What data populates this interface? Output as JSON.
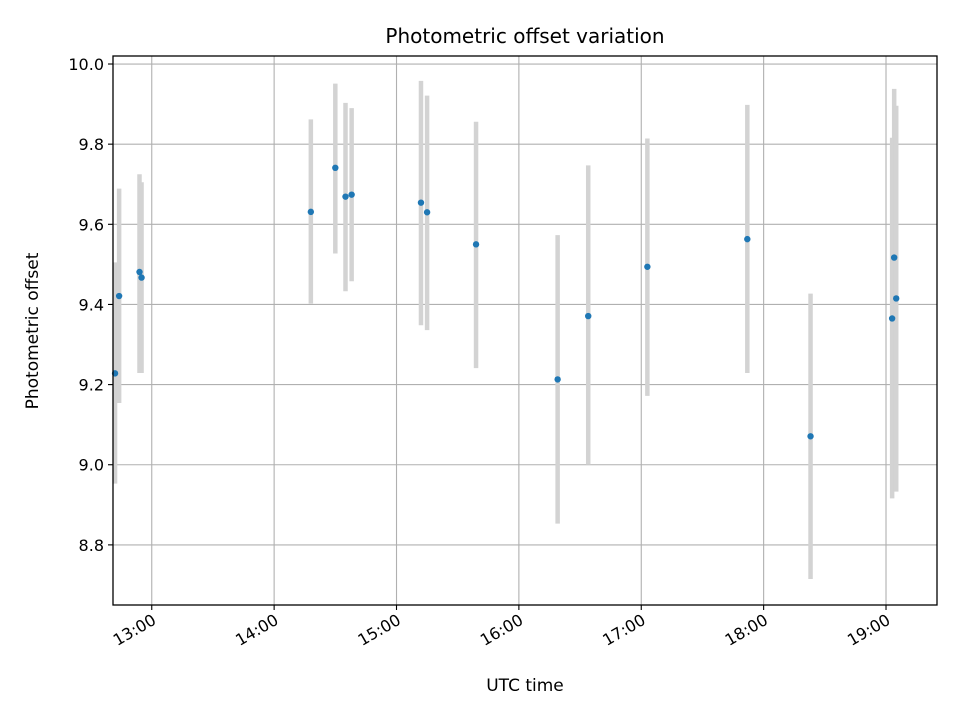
{
  "chart_data": {
    "type": "scatter",
    "title": "Photometric offset variation",
    "xlabel": "UTC time",
    "ylabel": "Photometric offset",
    "x_format": "HH:MM",
    "xlim": [
      "12:41",
      "19:25"
    ],
    "ylim": [
      8.65,
      10.02
    ],
    "x_ticks": [
      "13:00",
      "14:00",
      "15:00",
      "16:00",
      "17:00",
      "18:00",
      "19:00"
    ],
    "y_ticks": [
      "8.8",
      "9.0",
      "9.2",
      "9.4",
      "9.6",
      "9.8",
      "10.0"
    ],
    "grid": true,
    "point_color": "#1f77b4",
    "errorbar_color": "#d3d3d3",
    "points": [
      {
        "x": "12:42",
        "y": 9.228,
        "ylow": 8.953,
        "yhigh": 9.505
      },
      {
        "x": "12:44",
        "y": 9.421,
        "ylow": 9.154,
        "yhigh": 9.689
      },
      {
        "x": "12:54",
        "y": 9.481,
        "ylow": 9.229,
        "yhigh": 9.725
      },
      {
        "x": "12:55",
        "y": 9.467,
        "ylow": 9.229,
        "yhigh": 9.705
      },
      {
        "x": "14:18",
        "y": 9.631,
        "ylow": 9.402,
        "yhigh": 9.862
      },
      {
        "x": "14:30",
        "y": 9.741,
        "ylow": 9.527,
        "yhigh": 9.951
      },
      {
        "x": "14:35",
        "y": 9.669,
        "ylow": 9.433,
        "yhigh": 9.903
      },
      {
        "x": "14:38",
        "y": 9.674,
        "ylow": 9.458,
        "yhigh": 9.89
      },
      {
        "x": "15:12",
        "y": 9.654,
        "ylow": 9.348,
        "yhigh": 9.958
      },
      {
        "x": "15:15",
        "y": 9.63,
        "ylow": 9.336,
        "yhigh": 9.921
      },
      {
        "x": "15:39",
        "y": 9.55,
        "ylow": 9.241,
        "yhigh": 9.856
      },
      {
        "x": "16:19",
        "y": 9.213,
        "ylow": 8.853,
        "yhigh": 9.573
      },
      {
        "x": "16:34",
        "y": 9.371,
        "ylow": 9.0,
        "yhigh": 9.747
      },
      {
        "x": "17:03",
        "y": 9.494,
        "ylow": 9.172,
        "yhigh": 9.814
      },
      {
        "x": "17:52",
        "y": 9.563,
        "ylow": 9.229,
        "yhigh": 9.898
      },
      {
        "x": "18:23",
        "y": 9.071,
        "ylow": 8.715,
        "yhigh": 9.427
      },
      {
        "x": "19:03",
        "y": 9.365,
        "ylow": 8.916,
        "yhigh": 9.816
      },
      {
        "x": "19:04",
        "y": 9.517,
        "ylow": 9.093,
        "yhigh": 9.938
      },
      {
        "x": "19:05",
        "y": 9.415,
        "ylow": 8.933,
        "yhigh": 9.896
      }
    ]
  }
}
